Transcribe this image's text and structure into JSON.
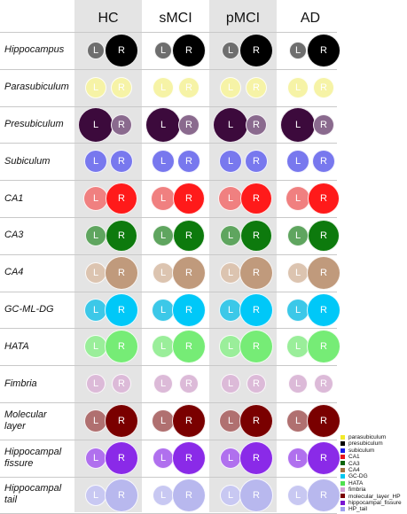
{
  "groups": [
    {
      "label": "HC"
    },
    {
      "label": "sMCI"
    },
    {
      "label": "pMCI"
    },
    {
      "label": "AD"
    }
  ],
  "hemisphere_labels": {
    "left": "L",
    "right": "R"
  },
  "rows": [
    {
      "name": "Hippocampus",
      "lines": [
        "Hippocampus"
      ],
      "colorL": "#6e6e6e",
      "colorR": "#000000",
      "sizes": [
        [
          20,
          38
        ],
        [
          20,
          38
        ],
        [
          20,
          38
        ],
        [
          20,
          38
        ]
      ]
    },
    {
      "name": "Parasubiculum",
      "lines": [
        "Parasubiculum"
      ],
      "colorL": "#f6f3a6",
      "colorR": "#f6f3a6",
      "sizes": [
        [
          24,
          24
        ],
        [
          24,
          24
        ],
        [
          24,
          24
        ],
        [
          24,
          24
        ]
      ]
    },
    {
      "name": "Presubiculum",
      "lines": [
        "Presubiculum"
      ],
      "colorL": "#3c0a3c",
      "colorR": "#8a6a8e",
      "sizes": [
        [
          40,
          24
        ],
        [
          40,
          24
        ],
        [
          40,
          24
        ],
        [
          40,
          24
        ]
      ]
    },
    {
      "name": "Subiculum",
      "lines": [
        "Subiculum"
      ],
      "colorL": "#7878ee",
      "colorR": "#7878ee",
      "sizes": [
        [
          26,
          26
        ],
        [
          26,
          26
        ],
        [
          26,
          26
        ],
        [
          26,
          26
        ]
      ]
    },
    {
      "name": "CA1",
      "lines": [
        "CA1"
      ],
      "colorL": "#f08080",
      "colorR": "#ff1a1a",
      "sizes": [
        [
          28,
          36
        ],
        [
          28,
          36
        ],
        [
          28,
          36
        ],
        [
          28,
          36
        ]
      ]
    },
    {
      "name": "CA3",
      "lines": [
        "CA3"
      ],
      "colorL": "#5fa55f",
      "colorR": "#0d7a0d",
      "sizes": [
        [
          24,
          36
        ],
        [
          24,
          36
        ],
        [
          24,
          36
        ],
        [
          24,
          36
        ]
      ]
    },
    {
      "name": "CA4",
      "lines": [
        "CA4"
      ],
      "colorL": "#dcc4b0",
      "colorR": "#c09a7c",
      "sizes": [
        [
          24,
          38
        ],
        [
          24,
          38
        ],
        [
          24,
          38
        ],
        [
          24,
          38
        ]
      ]
    },
    {
      "name": "GC-ML-DG",
      "lines": [
        "GC-ML-DG"
      ],
      "colorL": "#3cc8e8",
      "colorR": "#00c8f8",
      "sizes": [
        [
          26,
          38
        ],
        [
          26,
          38
        ],
        [
          26,
          38
        ],
        [
          26,
          38
        ]
      ]
    },
    {
      "name": "HATA",
      "lines": [
        "HATA"
      ],
      "colorL": "#9aee9a",
      "colorR": "#76ec76",
      "sizes": [
        [
          26,
          38
        ],
        [
          26,
          38
        ],
        [
          26,
          38
        ],
        [
          26,
          38
        ]
      ]
    },
    {
      "name": "Fimbria",
      "lines": [
        "Fimbria"
      ],
      "colorL": "#dcbad8",
      "colorR": "#dcbad8",
      "sizes": [
        [
          22,
          22
        ],
        [
          22,
          22
        ],
        [
          22,
          22
        ],
        [
          22,
          22
        ]
      ]
    },
    {
      "name": "Molecular layer",
      "lines": [
        "Molecular",
        "layer"
      ],
      "colorL": "#b07070",
      "colorR": "#7a0000",
      "sizes": [
        [
          26,
          38
        ],
        [
          26,
          38
        ],
        [
          26,
          38
        ],
        [
          26,
          38
        ]
      ]
    },
    {
      "name": "Hippocampal fissure",
      "lines": [
        "Hippocampal",
        "fissure"
      ],
      "colorL": "#b070ee",
      "colorR": "#8a2ae8",
      "sizes": [
        [
          24,
          38
        ],
        [
          24,
          38
        ],
        [
          24,
          38
        ],
        [
          24,
          38
        ]
      ]
    },
    {
      "name": "Hippocampal tail",
      "lines": [
        "Hippocampal",
        "tail"
      ],
      "colorL": "#c8c8f2",
      "colorR": "#b8b8ee",
      "sizes": [
        [
          24,
          38
        ],
        [
          24,
          38
        ],
        [
          24,
          38
        ],
        [
          24,
          38
        ]
      ]
    }
  ],
  "legend": [
    {
      "label": "parasubiculum",
      "color": "#f2ea2a"
    },
    {
      "label": "presubiculum",
      "color": "#000000"
    },
    {
      "label": "subiculum",
      "color": "#1a1ae8"
    },
    {
      "label": "CA1",
      "color": "#e8141a"
    },
    {
      "label": "CA3",
      "color": "#0a640a"
    },
    {
      "label": "CA4",
      "color": "#a07040"
    },
    {
      "label": "GC-DG",
      "color": "#00c8f0"
    },
    {
      "label": "HATA",
      "color": "#50e050"
    },
    {
      "label": "fimbria",
      "color": "#d2a0d2"
    },
    {
      "label": "molecular_layer_HP",
      "color": "#7a0000"
    },
    {
      "label": "hippocampal_fissure",
      "color": "#7a14d2"
    },
    {
      "label": "HP_tail",
      "color": "#a0a0ee"
    }
  ]
}
